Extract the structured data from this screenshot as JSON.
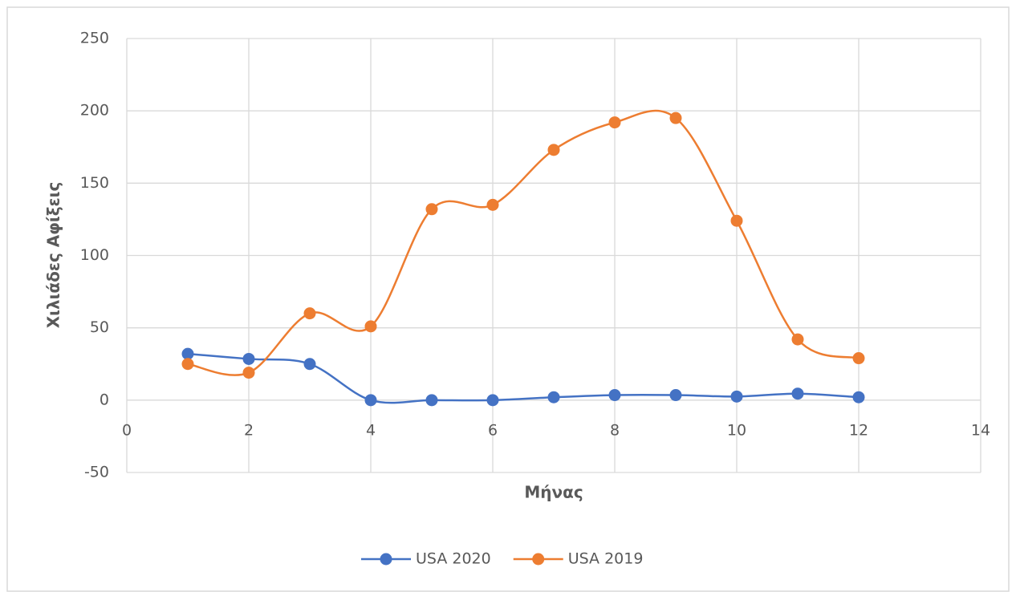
{
  "chart_data": {
    "type": "line",
    "smooth": true,
    "x": [
      1,
      2,
      3,
      4,
      5,
      6,
      7,
      8,
      9,
      10,
      11,
      12
    ],
    "series": [
      {
        "name": "USA 2020",
        "color": "#4472c4",
        "values": [
          32,
          28.5,
          25,
          0,
          0,
          0,
          2,
          3.5,
          3.5,
          2.5,
          4.5,
          2
        ]
      },
      {
        "name": "USA 2019",
        "color": "#ed7d31",
        "values": [
          25,
          19,
          60,
          51,
          132,
          135,
          173,
          192,
          195,
          124,
          42,
          29
        ]
      }
    ],
    "xlabel": "Μήνας",
    "ylabel": "Χιλιάδες Αφίξεις",
    "xlim": [
      0,
      14
    ],
    "xticks": [
      0,
      2,
      4,
      6,
      8,
      10,
      12,
      14
    ],
    "ylim": [
      -50,
      250
    ],
    "yticks": [
      -50,
      0,
      50,
      100,
      150,
      200,
      250
    ],
    "grid": true,
    "legend": "bottom"
  }
}
